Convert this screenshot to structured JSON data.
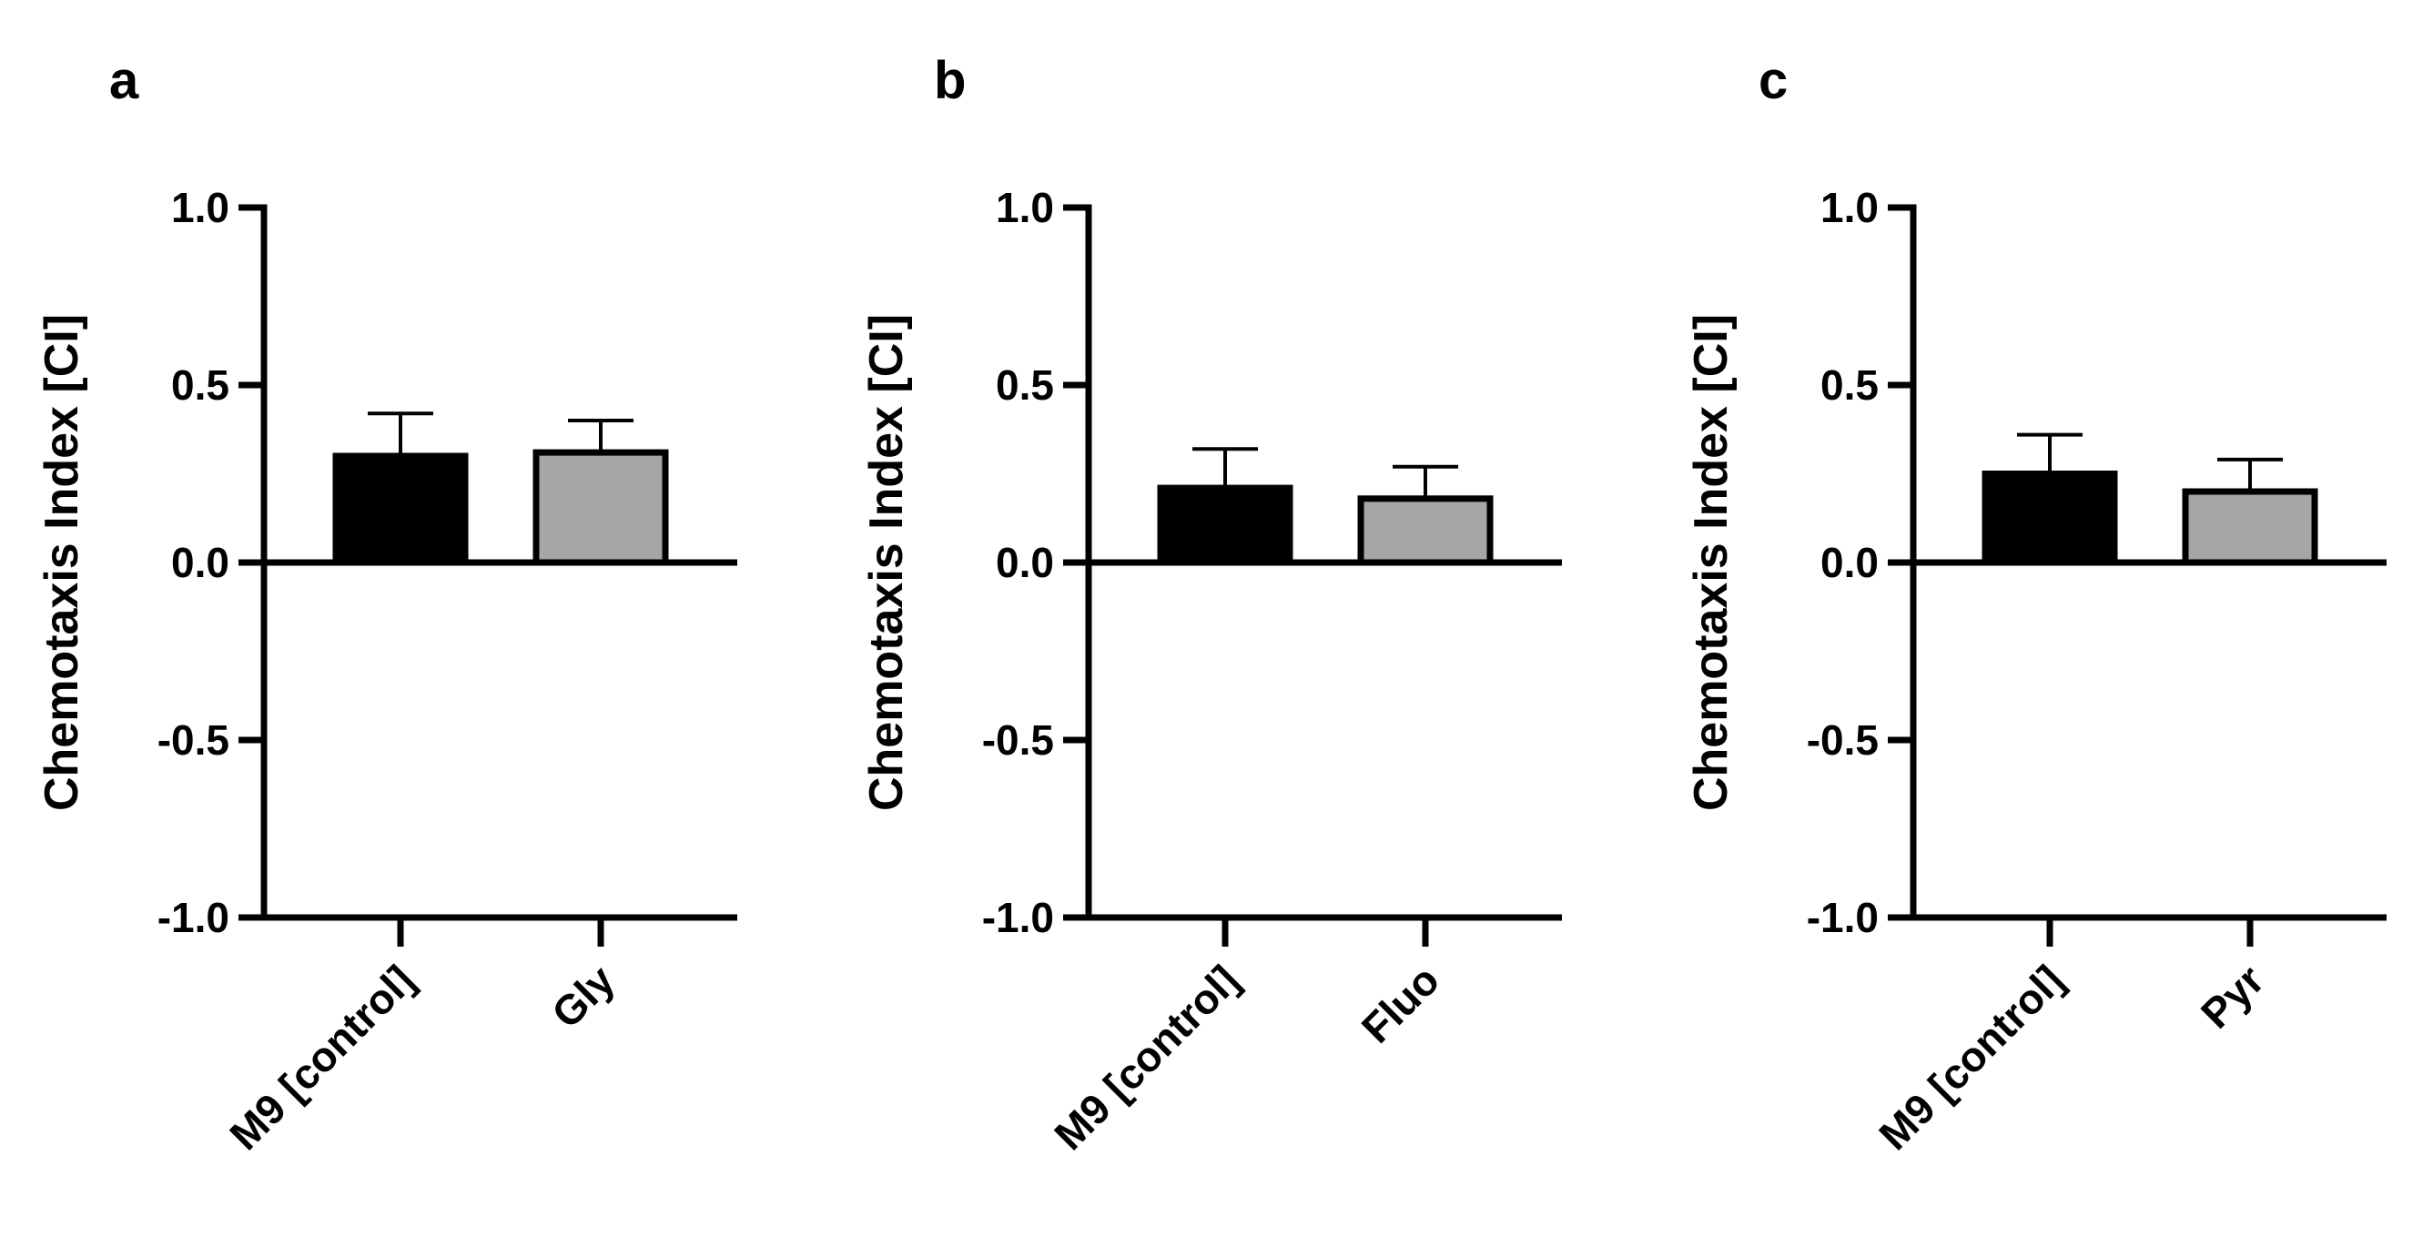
{
  "chart_data": [
    {
      "type": "bar",
      "panel_label": "a",
      "ylabel": "Chemotaxis Index [CI]",
      "ylim": [
        -1.0,
        1.0
      ],
      "yticks": [
        1.0,
        0.5,
        0.0,
        -0.5,
        -1.0
      ],
      "ytick_labels": [
        "1.0",
        "0.5",
        "0.0",
        "-0.5",
        "-1.0"
      ],
      "categories": [
        "M9 [control]",
        "Gly"
      ],
      "values": [
        0.3,
        0.31
      ],
      "errors": [
        0.12,
        0.09
      ],
      "colors": [
        "#000000",
        "#a6a6a6"
      ]
    },
    {
      "type": "bar",
      "panel_label": "b",
      "ylabel": "Chemotaxis Index [CI]",
      "ylim": [
        -1.0,
        1.0
      ],
      "yticks": [
        1.0,
        0.5,
        0.0,
        -0.5,
        -1.0
      ],
      "ytick_labels": [
        "1.0",
        "0.5",
        "0.0",
        "-0.5",
        "-1.0"
      ],
      "categories": [
        "M9 [control]",
        "Fluo"
      ],
      "values": [
        0.21,
        0.18
      ],
      "errors": [
        0.11,
        0.09
      ],
      "colors": [
        "#000000",
        "#a6a6a6"
      ]
    },
    {
      "type": "bar",
      "panel_label": "c",
      "ylabel": "Chemotaxis Index [CI]",
      "ylim": [
        -1.0,
        1.0
      ],
      "yticks": [
        1.0,
        0.5,
        0.0,
        -0.5,
        -1.0
      ],
      "ytick_labels": [
        "1.0",
        "0.5",
        "0.0",
        "-0.5",
        "-1.0"
      ],
      "categories": [
        "M9 [control]",
        "Pyr"
      ],
      "values": [
        0.25,
        0.2
      ],
      "errors": [
        0.11,
        0.09
      ],
      "colors": [
        "#000000",
        "#a6a6a6"
      ]
    }
  ]
}
